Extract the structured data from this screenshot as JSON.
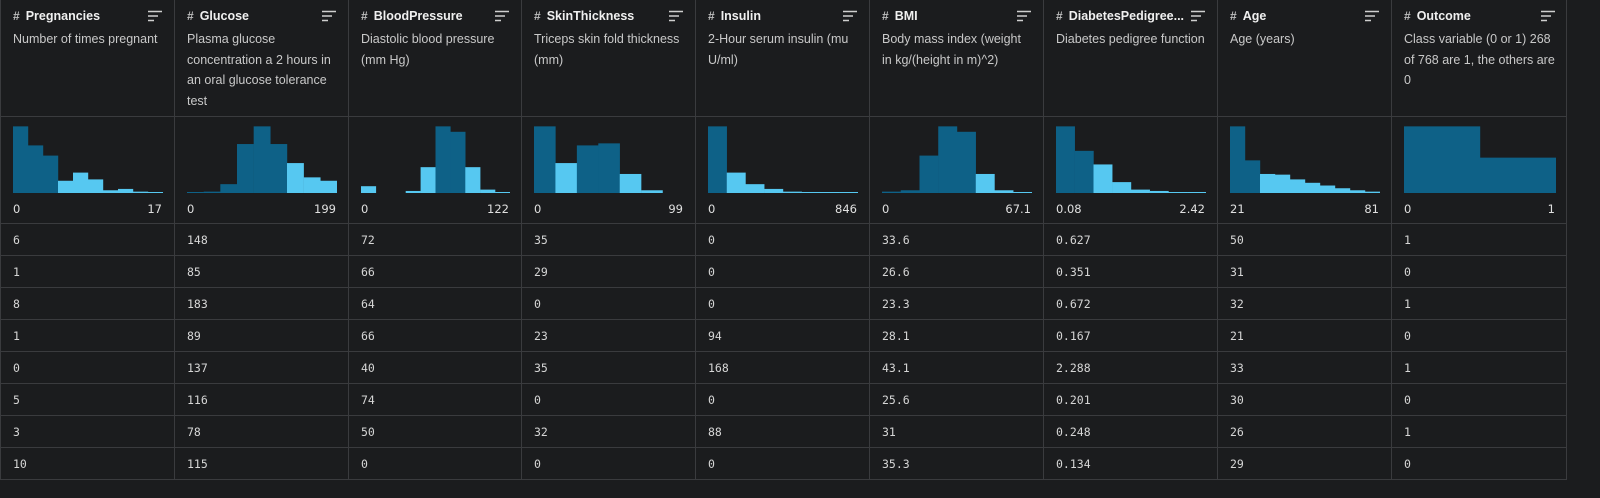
{
  "colors": {
    "bar_dark": "#0e6187",
    "bar_light": "#56c8f1",
    "background": "#1b1c1e",
    "grid_line": "#3a3b3e"
  },
  "icons": {
    "type": "hash-icon",
    "sort": "sort-icon"
  },
  "columns": [
    {
      "type_symbol": "#",
      "name": "Pregnancies",
      "description": "Number of times pregnant",
      "range_min": "0",
      "range_max": "17",
      "histogram": [
        0.98,
        0.7,
        0.55,
        0.18,
        0.3,
        0.2,
        0.04,
        0.06,
        0.02,
        0.01
      ],
      "highlight": [
        3,
        4,
        5,
        6,
        7,
        8,
        9
      ]
    },
    {
      "type_symbol": "#",
      "name": "Glucose",
      "description": "Plasma glucose concentration a 2 hours in an oral glucose tolerance test",
      "range_min": "0",
      "range_max": "199",
      "histogram": [
        0.01,
        0.02,
        0.13,
        0.72,
        0.98,
        0.72,
        0.44,
        0.23,
        0.18
      ],
      "highlight": [
        6,
        7,
        8
      ]
    },
    {
      "type_symbol": "#",
      "name": "BloodPressure",
      "description": "Diastolic blood pressure (mm Hg)",
      "range_min": "0",
      "range_max": "122",
      "histogram": [
        0.1,
        0.0,
        0.0,
        0.03,
        0.38,
        0.98,
        0.9,
        0.38,
        0.05,
        0.01
      ],
      "highlight": [
        0,
        1,
        2,
        3,
        4,
        7,
        8,
        9
      ]
    },
    {
      "type_symbol": "#",
      "name": "SkinThickness",
      "description": "Triceps skin fold thickness (mm)",
      "range_min": "0",
      "range_max": "99",
      "histogram": [
        0.98,
        0.44,
        0.7,
        0.73,
        0.28,
        0.04,
        0.0
      ],
      "highlight": [
        1,
        4,
        5,
        6
      ]
    },
    {
      "type_symbol": "#",
      "name": "Insulin",
      "description": "2-Hour serum insulin (mu U/ml)",
      "range_min": "0",
      "range_max": "846",
      "histogram": [
        0.98,
        0.3,
        0.13,
        0.06,
        0.02,
        0.015,
        0.01,
        0.005
      ],
      "highlight": [
        1,
        2,
        3,
        4,
        5,
        6,
        7
      ]
    },
    {
      "type_symbol": "#",
      "name": "BMI",
      "description": "Body mass index (weight in kg/(height in m)^2)",
      "range_min": "0",
      "range_max": "67.1",
      "histogram": [
        0.02,
        0.04,
        0.55,
        0.98,
        0.9,
        0.28,
        0.04,
        0.01
      ],
      "highlight": [
        5,
        6,
        7
      ]
    },
    {
      "type_symbol": "#",
      "name": "DiabetesPedigree...",
      "description": "Diabetes pedigree function",
      "range_min": "0.08",
      "range_max": "2.42",
      "histogram": [
        0.98,
        0.62,
        0.42,
        0.16,
        0.05,
        0.03,
        0.01,
        0.005
      ],
      "highlight": [
        2,
        3,
        4,
        5,
        6,
        7
      ]
    },
    {
      "type_symbol": "#",
      "name": "Age",
      "description": "Age (years)",
      "range_min": "21",
      "range_max": "81",
      "histogram": [
        0.98,
        0.48,
        0.28,
        0.27,
        0.2,
        0.15,
        0.11,
        0.07,
        0.04,
        0.02
      ],
      "highlight": [
        2,
        3,
        4,
        5,
        6,
        7,
        8,
        9
      ]
    },
    {
      "type_symbol": "#",
      "name": "Outcome",
      "description": "Class variable (0 or 1) 268 of 768 are 1, the others are 0",
      "range_min": "0",
      "range_max": "1",
      "histogram": [
        0.98,
        0.52
      ],
      "highlight": []
    }
  ],
  "rows": [
    [
      "6",
      "148",
      "72",
      "35",
      "0",
      "33.6",
      "0.627",
      "50",
      "1"
    ],
    [
      "1",
      "85",
      "66",
      "29",
      "0",
      "26.6",
      "0.351",
      "31",
      "0"
    ],
    [
      "8",
      "183",
      "64",
      "0",
      "0",
      "23.3",
      "0.672",
      "32",
      "1"
    ],
    [
      "1",
      "89",
      "66",
      "23",
      "94",
      "28.1",
      "0.167",
      "21",
      "0"
    ],
    [
      "0",
      "137",
      "40",
      "35",
      "168",
      "43.1",
      "2.288",
      "33",
      "1"
    ],
    [
      "5",
      "116",
      "74",
      "0",
      "0",
      "25.6",
      "0.201",
      "30",
      "0"
    ],
    [
      "3",
      "78",
      "50",
      "32",
      "88",
      "31",
      "0.248",
      "26",
      "1"
    ],
    [
      "10",
      "115",
      "0",
      "0",
      "0",
      "35.3",
      "0.134",
      "29",
      "0"
    ]
  ]
}
